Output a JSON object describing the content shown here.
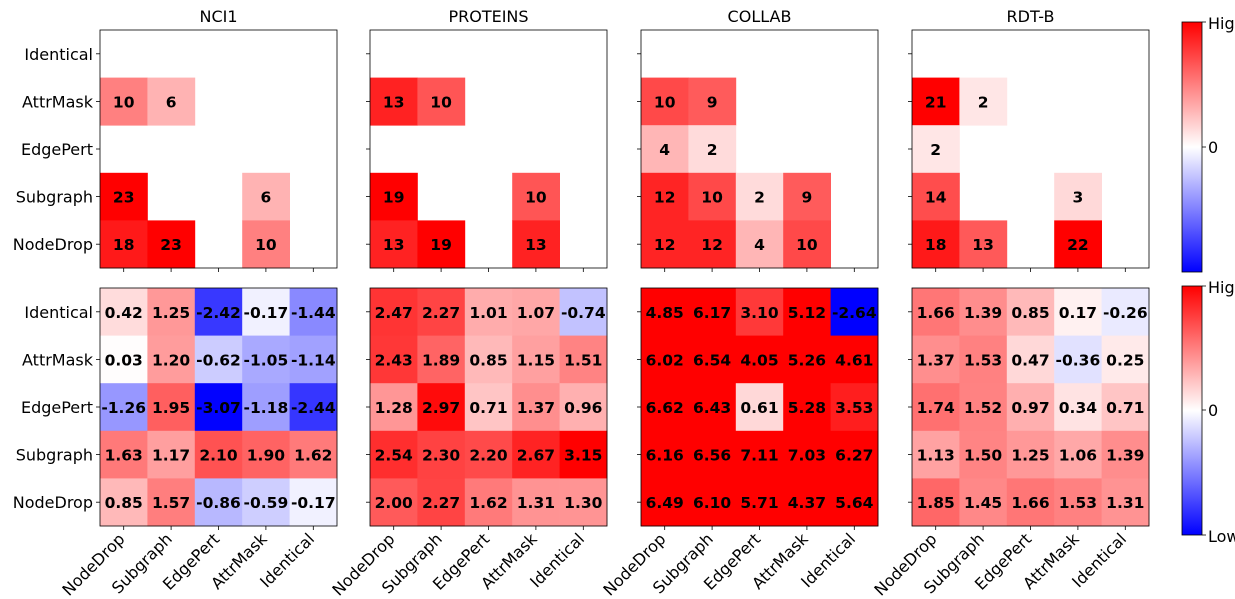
{
  "row_labels": [
    "Identical",
    "AttrMask",
    "EdgePert",
    "Subgraph",
    "NodeDrop"
  ],
  "col_labels": [
    "NodeDrop",
    "Subgraph",
    "EdgePert",
    "AttrMask",
    "Identical"
  ],
  "colorbar_top": {
    "high": "High",
    "zero": "0"
  },
  "colorbar_bottom": {
    "high": "High",
    "zero": "0",
    "low": "Low"
  },
  "colors": {
    "low": "#0000ff",
    "mid": "#ffffff",
    "high": "#ff0000"
  },
  "chart_data": [
    {
      "type": "heatmap",
      "title": "NCI1",
      "row": "top",
      "vmax": 20,
      "values": [
        [
          null,
          null,
          null,
          null,
          null
        ],
        [
          10,
          6,
          null,
          null,
          null
        ],
        [
          null,
          null,
          null,
          null,
          null
        ],
        [
          23,
          null,
          null,
          6,
          null
        ],
        [
          18,
          23,
          null,
          10,
          null
        ]
      ]
    },
    {
      "type": "heatmap",
      "title": "PROTEINS",
      "row": "top",
      "vmax": 15,
      "values": [
        [
          null,
          null,
          null,
          null,
          null
        ],
        [
          13,
          10,
          null,
          null,
          null
        ],
        [
          null,
          null,
          null,
          null,
          null
        ],
        [
          19,
          null,
          null,
          10,
          null
        ],
        [
          13,
          19,
          null,
          13,
          null
        ]
      ]
    },
    {
      "type": "heatmap",
      "title": "COLLAB",
      "row": "top",
      "vmax": 14,
      "values": [
        [
          null,
          null,
          null,
          null,
          null
        ],
        [
          10,
          9,
          null,
          null,
          null
        ],
        [
          4,
          2,
          null,
          null,
          null
        ],
        [
          12,
          10,
          2,
          9,
          null
        ],
        [
          12,
          12,
          4,
          10,
          null
        ]
      ]
    },
    {
      "type": "heatmap",
      "title": "RDT-B",
      "row": "top",
      "vmax": 20,
      "values": [
        [
          null,
          null,
          null,
          null,
          null
        ],
        [
          21,
          2,
          null,
          null,
          null
        ],
        [
          2,
          null,
          null,
          null,
          null
        ],
        [
          14,
          null,
          null,
          3,
          null
        ],
        [
          18,
          13,
          null,
          22,
          null
        ]
      ]
    },
    {
      "type": "heatmap",
      "title": "",
      "row": "bottom",
      "vmin": -3.1,
      "vmax": 3.1,
      "values": [
        [
          "0.42",
          "1.25",
          "-2.42",
          "-0.17",
          "-1.44"
        ],
        [
          "0.03",
          "1.20",
          "-0.62",
          "-1.05",
          "-1.14"
        ],
        [
          "-1.26",
          "1.95",
          "-3.07",
          "-1.18",
          "-2.44"
        ],
        [
          "1.63",
          "1.17",
          "2.10",
          "1.90",
          "1.62"
        ],
        [
          "0.85",
          "1.57",
          "-0.86",
          "-0.59",
          "-0.17"
        ]
      ]
    },
    {
      "type": "heatmap",
      "title": "",
      "row": "bottom",
      "vmin": -3.1,
      "vmax": 3.1,
      "values": [
        [
          "2.47",
          "2.27",
          "1.01",
          "1.07",
          "-0.74"
        ],
        [
          "2.43",
          "1.89",
          "0.85",
          "1.15",
          "1.51"
        ],
        [
          "1.28",
          "2.97",
          "0.71",
          "1.37",
          "0.96"
        ],
        [
          "2.54",
          "2.30",
          "2.20",
          "2.67",
          "3.15"
        ],
        [
          "2.00",
          "2.27",
          "1.62",
          "1.31",
          "1.30"
        ]
      ]
    },
    {
      "type": "heatmap",
      "title": "",
      "row": "bottom",
      "vmin": -2.64,
      "vmax": 4.0,
      "values": [
        [
          "4.85",
          "6.17",
          "3.10",
          "5.12",
          "-2.64"
        ],
        [
          "6.02",
          "6.54",
          "4.05",
          "5.26",
          "4.61"
        ],
        [
          "6.62",
          "6.43",
          "0.61",
          "5.28",
          "3.53"
        ],
        [
          "6.16",
          "6.56",
          "7.11",
          "7.03",
          "6.27"
        ],
        [
          "6.49",
          "6.10",
          "5.71",
          "4.37",
          "5.64"
        ]
      ]
    },
    {
      "type": "heatmap",
      "title": "",
      "row": "bottom",
      "vmin": -3.1,
      "vmax": 3.1,
      "values": [
        [
          "1.66",
          "1.39",
          "0.85",
          "0.17",
          "-0.26"
        ],
        [
          "1.37",
          "1.53",
          "0.47",
          "-0.36",
          "0.25"
        ],
        [
          "1.74",
          "1.52",
          "0.97",
          "0.34",
          "0.71"
        ],
        [
          "1.13",
          "1.50",
          "1.25",
          "1.06",
          "1.39"
        ],
        [
          "1.85",
          "1.45",
          "1.66",
          "1.53",
          "1.31"
        ]
      ]
    }
  ]
}
